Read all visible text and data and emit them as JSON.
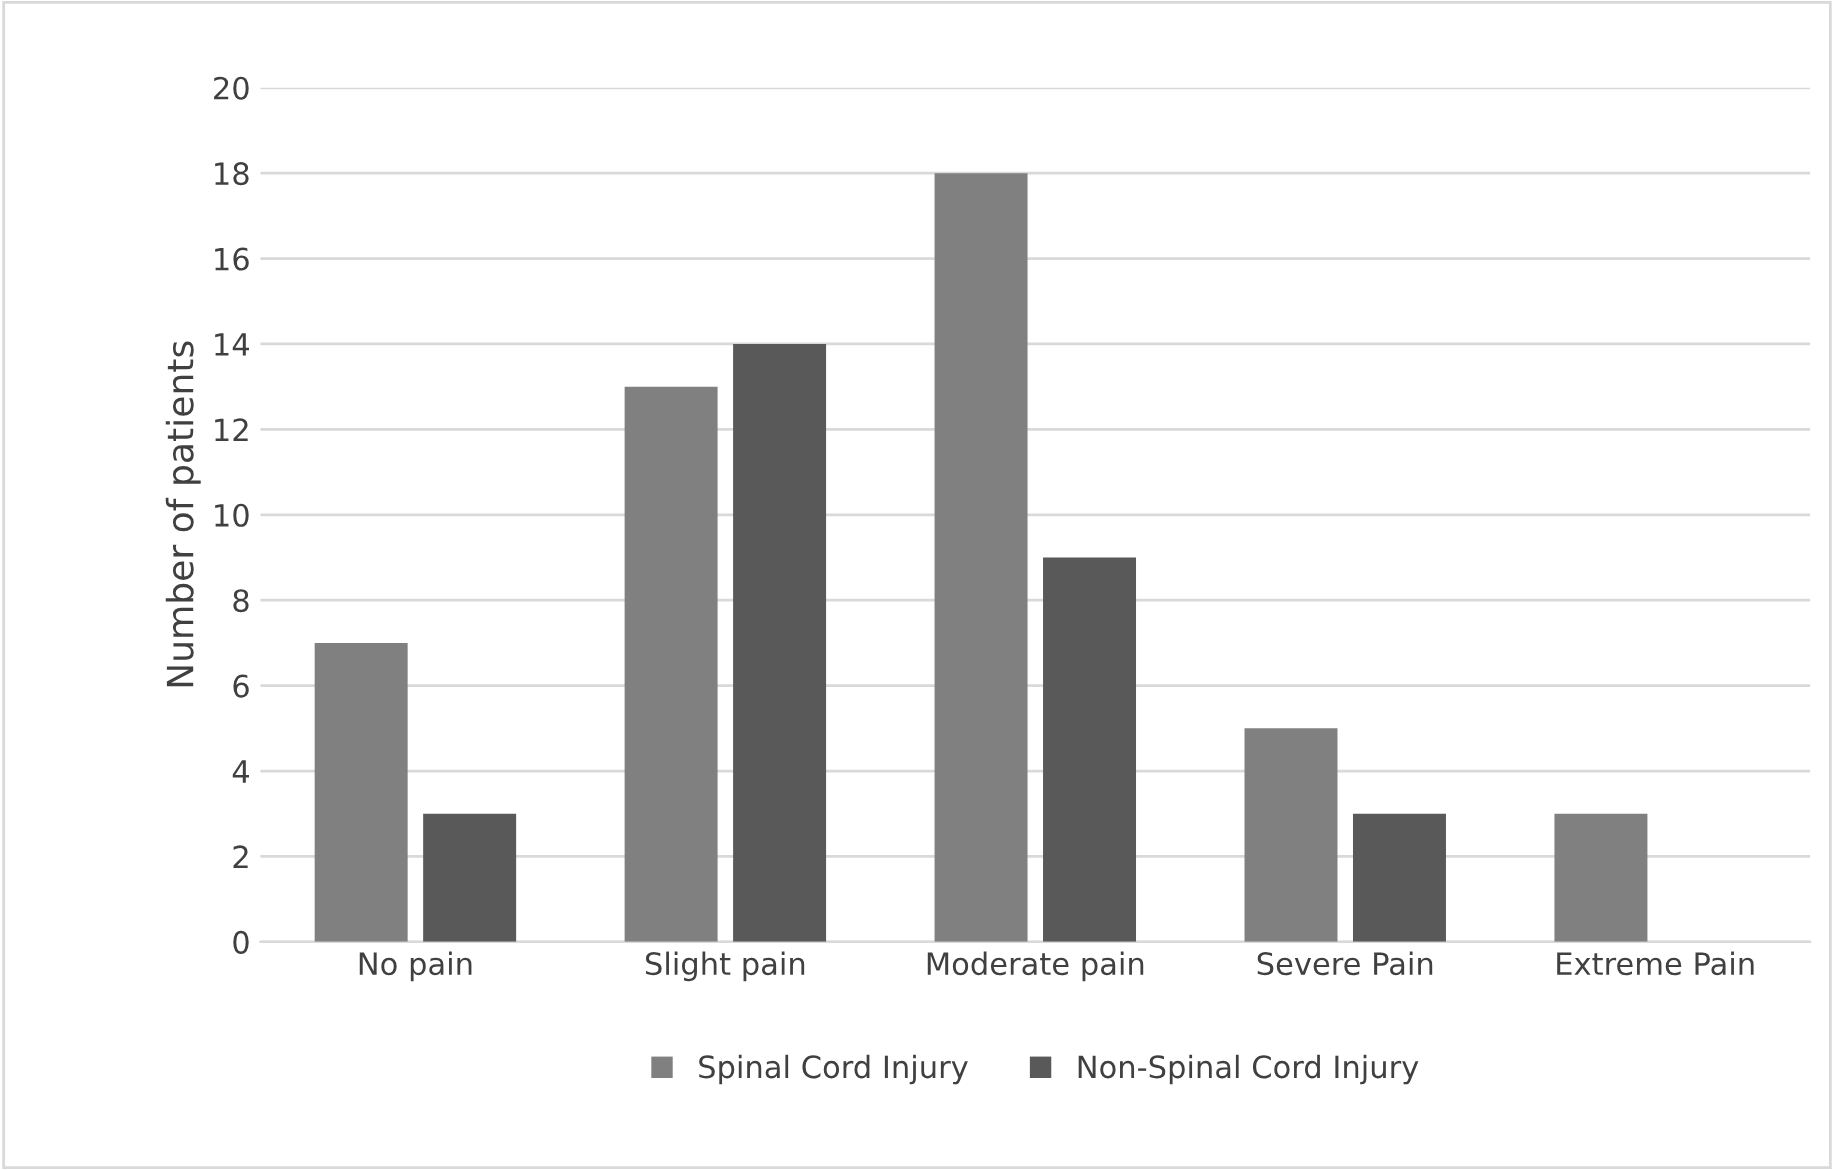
{
  "chart_data": {
    "type": "bar",
    "ylabel": "Number of patients",
    "categories": [
      "No pain",
      "Slight pain",
      "Moderate pain",
      "Severe Pain",
      "Extreme Pain"
    ],
    "series": [
      {
        "name": "Spinal Cord Injury",
        "color": "#808080",
        "values": [
          7,
          13,
          18,
          5,
          3
        ]
      },
      {
        "name": "Non-Spinal Cord Injury",
        "color": "#595959",
        "values": [
          3,
          14,
          9,
          3,
          0
        ]
      }
    ],
    "ylim": [
      0,
      20
    ],
    "yticks": [
      0,
      2,
      4,
      6,
      8,
      10,
      12,
      14,
      16,
      18,
      20
    ],
    "grid": "y",
    "legend": "bottom"
  }
}
